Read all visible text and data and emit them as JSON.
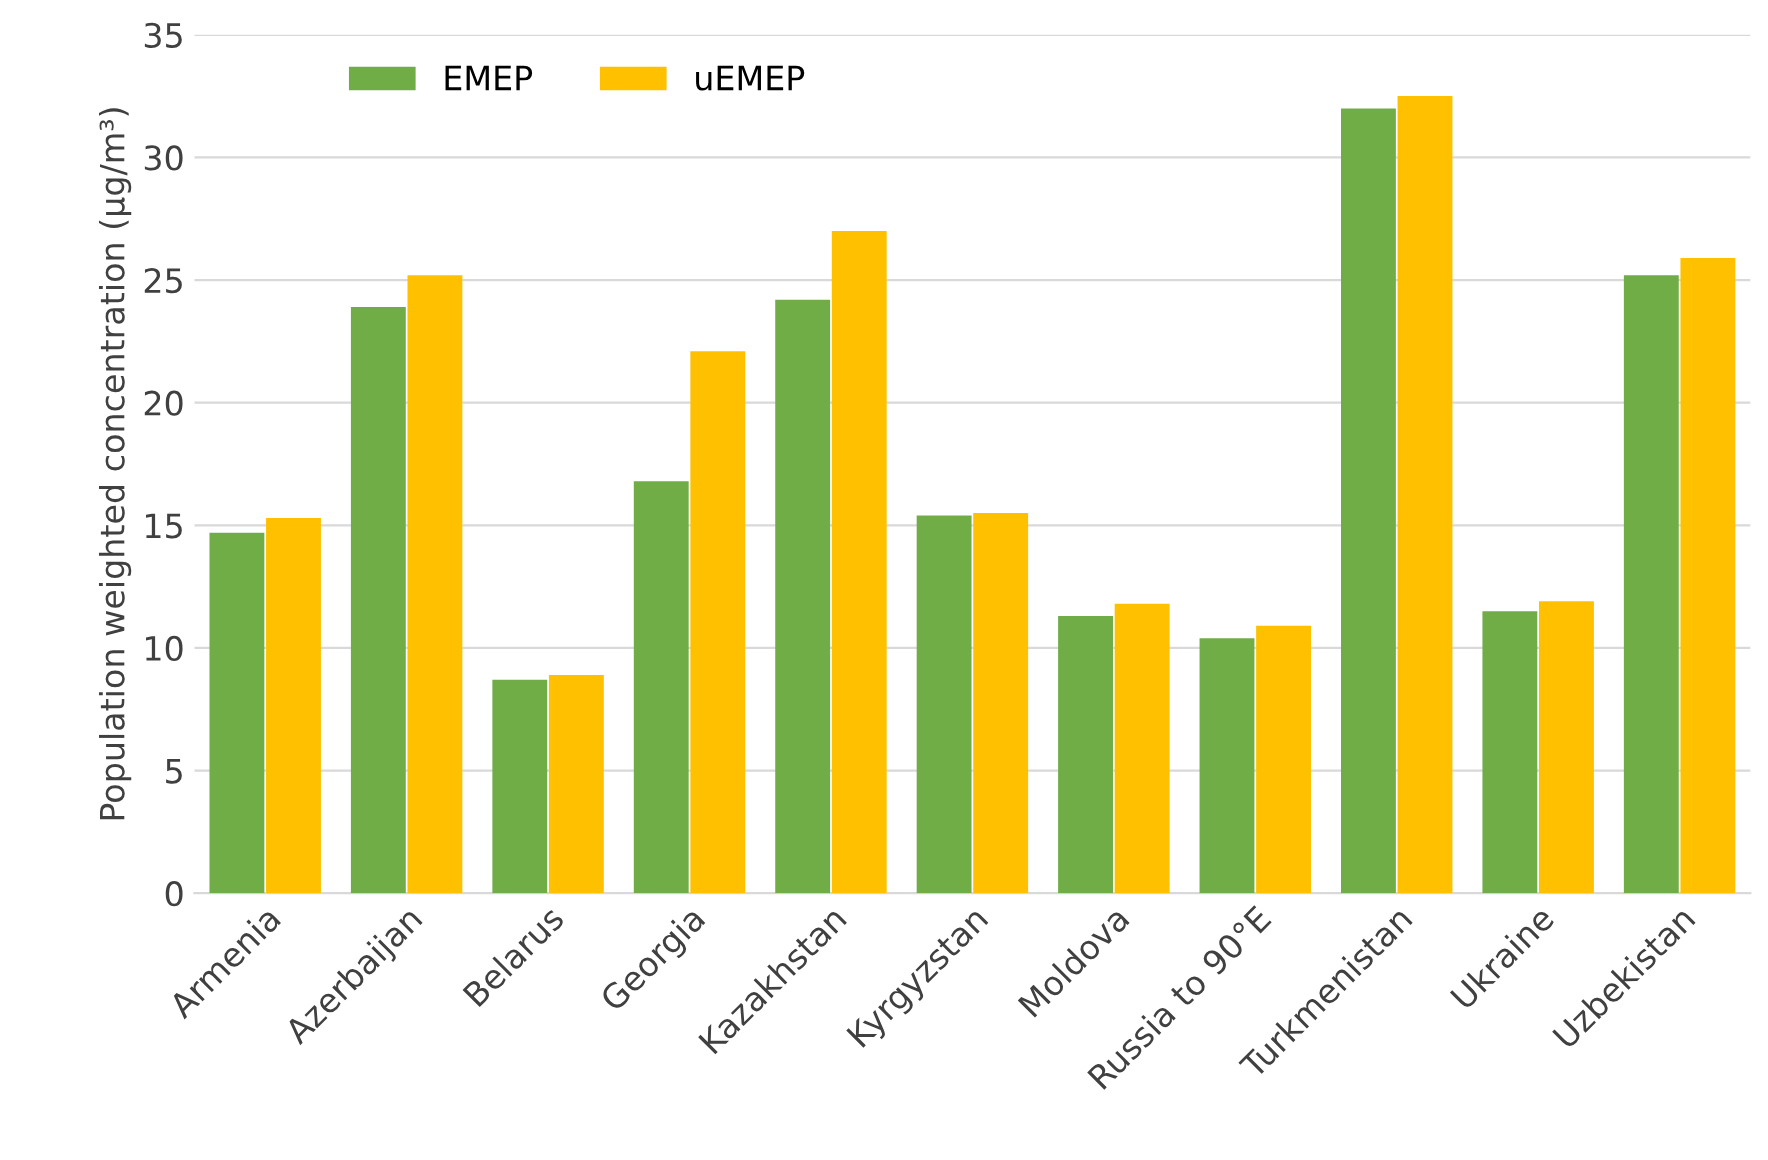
{
  "chart_data": {
    "type": "bar",
    "ylabel": "Population weighted concentration (µg/m³)",
    "categories": [
      "Armenia",
      "Azerbaijan",
      "Belarus",
      "Georgia",
      "Kazakhstan",
      "Kyrgyzstan",
      "Moldova",
      "Russia to 90°E",
      "Turkmenistan",
      "Ukraine",
      "Uzbekistan"
    ],
    "series": [
      {
        "name": "EMEP",
        "color": "#70ad47",
        "values": [
          14.7,
          23.9,
          8.7,
          16.8,
          24.2,
          15.4,
          11.3,
          10.4,
          32.0,
          11.5,
          25.2
        ]
      },
      {
        "name": "uEMEP",
        "color": "#ffc000",
        "values": [
          15.3,
          25.2,
          8.9,
          22.1,
          27.0,
          15.5,
          11.8,
          10.9,
          32.5,
          11.9,
          25.9
        ]
      }
    ],
    "ylim": [
      0,
      35
    ],
    "yticks": [
      0,
      5,
      10,
      15,
      20,
      25,
      30,
      35
    ],
    "grid": "y",
    "legend": "top left"
  }
}
